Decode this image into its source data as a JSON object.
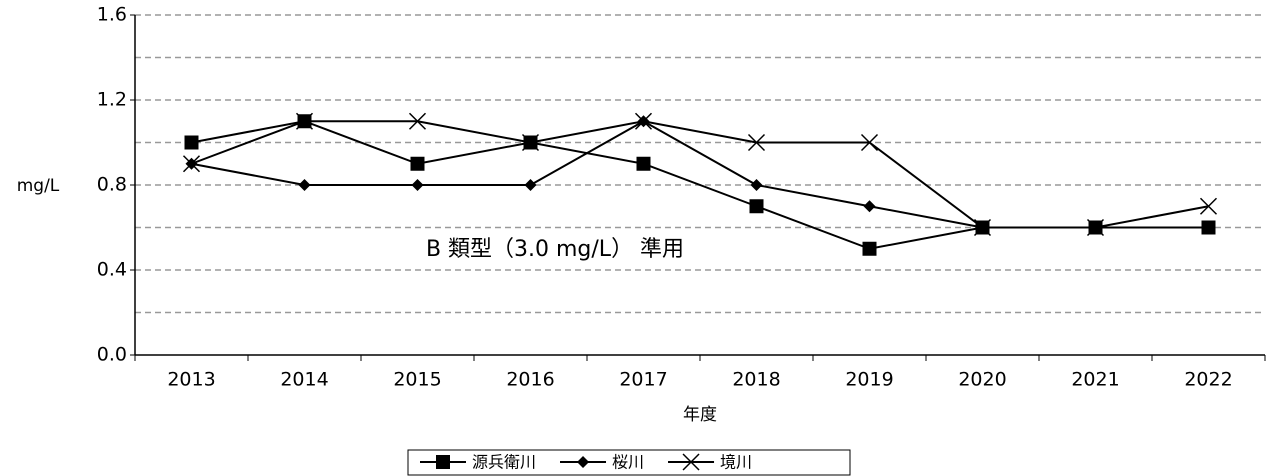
{
  "chart_data": {
    "type": "line",
    "x_label": "年度",
    "y_label": "mg/L",
    "annotation": "B 類型（3.0 mg/L） 準用",
    "categories": [
      "2013",
      "2014",
      "2015",
      "2016",
      "2017",
      "2018",
      "2019",
      "2020",
      "2021",
      "2022"
    ],
    "series": [
      {
        "name": "源兵衛川",
        "color": "#000000",
        "marker": "square",
        "values": [
          1.0,
          1.1,
          0.9,
          1.0,
          0.9,
          0.7,
          0.5,
          0.6,
          0.6,
          0.6
        ]
      },
      {
        "name": "桜川",
        "color": "#000000",
        "marker": "diamond",
        "values": [
          0.9,
          0.8,
          0.8,
          0.8,
          1.1,
          0.8,
          0.7,
          0.6,
          0.6,
          0.6
        ]
      },
      {
        "name": "境川",
        "color": "#000000",
        "marker": "x",
        "values": [
          0.9,
          1.1,
          1.1,
          1.0,
          1.1,
          1.0,
          1.0,
          0.6,
          0.6,
          0.7
        ]
      }
    ],
    "ylim": [
      0,
      1.6
    ],
    "yticks": [
      {
        "value": 0,
        "label": "0.0"
      },
      0.4,
      0.8,
      1.2,
      1.6
    ],
    "minor_yticks": [
      0.2,
      0.6,
      1.0,
      1.4
    ],
    "grid": true,
    "legend": "bottom"
  }
}
